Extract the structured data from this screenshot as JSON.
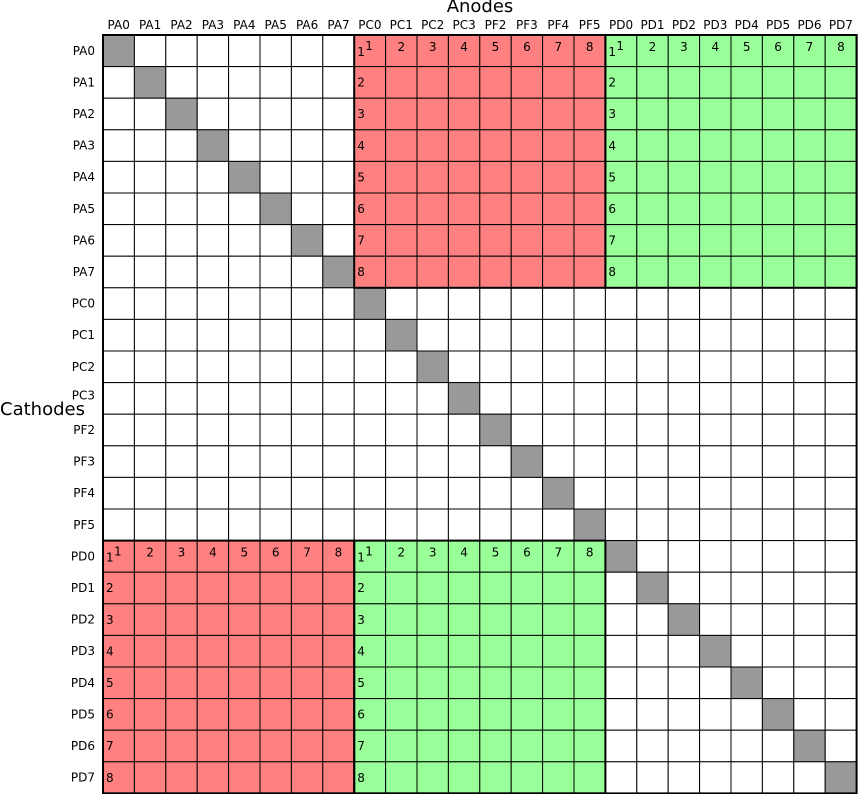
{
  "title_anodes": "Anodes",
  "title_cathodes": "Cathodes",
  "pins": [
    "PA0",
    "PA1",
    "PA2",
    "PA3",
    "PA4",
    "PA5",
    "PA6",
    "PA7",
    "PC0",
    "PC1",
    "PC2",
    "PC3",
    "PF2",
    "PF3",
    "PF4",
    "PF5",
    "PD0",
    "PD1",
    "PD2",
    "PD3",
    "PD4",
    "PD5",
    "PD6",
    "PD7"
  ],
  "colors": {
    "diagonal": "#999999",
    "red": "#ff8080",
    "green": "#99ff99",
    "empty": "#ffffff",
    "grid": "#000000"
  },
  "blocks": [
    {
      "color": "red",
      "row_start": 0,
      "col_start": 8,
      "size": 8
    },
    {
      "color": "green",
      "row_start": 0,
      "col_start": 16,
      "size": 8
    },
    {
      "color": "red",
      "row_start": 16,
      "col_start": 0,
      "size": 8
    },
    {
      "color": "green",
      "row_start": 16,
      "col_start": 8,
      "size": 8
    }
  ],
  "block_numbers": [
    "1",
    "2",
    "3",
    "4",
    "5",
    "6",
    "7",
    "8"
  ]
}
